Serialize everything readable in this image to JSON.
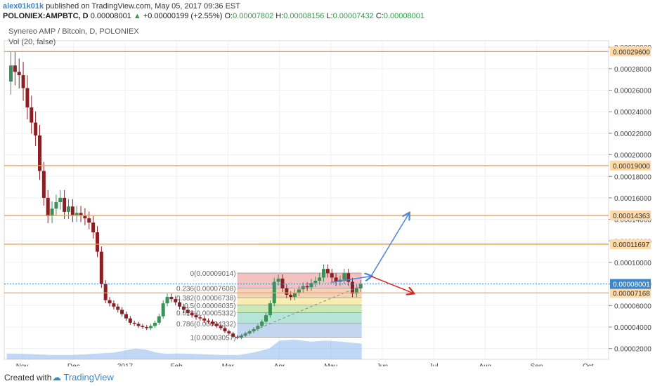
{
  "header": {
    "author": "alex01k01k",
    "meta": "published on TradingView.com, May 05, 2017 09:36 EST",
    "symbol": "POLONIEX:AMPBTC, D",
    "price": "0.00008001",
    "change_arrow": "▲",
    "change": "+0.00000199 (+2.55%)",
    "o_label": "O:",
    "o_val": "0.00007802",
    "h_label": "H:",
    "h_val": "0.00008156",
    "l_label": "L:",
    "l_val": "0.00007432",
    "c_label": "C:",
    "c_val": "0.00008001"
  },
  "legend": {
    "title": "Synereo AMP / Bitcoin, D, POLONIEX",
    "volume": "Vol (20, false)"
  },
  "footer": {
    "created": "Created with",
    "brand": "TradingView"
  },
  "colors": {
    "up": "#3d8f5a",
    "down": "#8a1f24",
    "hline": "#f0a050",
    "volume_area": "#4a90e2",
    "up_arrow": "#4a86d8",
    "down_arrow": "#e02020",
    "label_orange": "#ffd9a6",
    "price_label_bg": "#3b87c9"
  },
  "chart_data": {
    "type": "candlestick",
    "x_ticks": [
      "Nov",
      "Dec",
      "2017",
      "Feb",
      "Mar",
      "Apr",
      "May",
      "Jun",
      "Jul",
      "Aug",
      "Sep",
      "Oct"
    ],
    "y_ticks": [
      "0.00002000",
      "0.00004000",
      "0.00006000",
      "0.00008000",
      "0.00010000",
      "0.00012000",
      "0.00014000",
      "0.00016000",
      "0.00018000",
      "0.00020000",
      "0.00022000",
      "0.00024000",
      "0.00026000",
      "0.00028000",
      "0.00030000"
    ],
    "y_range": [
      1e-05,
      0.000306
    ],
    "x_range": [
      -0.35,
      11.4
    ],
    "horizontal_lines": [
      {
        "value": 0.000296,
        "label": "0.00029600"
      },
      {
        "value": 0.00019,
        "label": "0.00019000"
      },
      {
        "value": 0.00014363,
        "label": "0.00014363"
      },
      {
        "value": 0.00011697,
        "label": "0.00011697"
      },
      {
        "value": 7.168e-05,
        "label": "0.00007168"
      }
    ],
    "current_price": {
      "value": 8.001e-05,
      "label": "0.00008001"
    },
    "fibonacci": [
      {
        "label": "0(0.00009014)",
        "value": 9.014e-05,
        "color": "#f2b6b6"
      },
      {
        "label": "0.236(0.00007608)",
        "value": 7.608e-05,
        "color": "#f6c9a8"
      },
      {
        "label": "0.382(0.00006738)",
        "value": 6.738e-05,
        "color": "#f4eaa0"
      },
      {
        "label": "0.5(0.00006035)",
        "value": 6.035e-05,
        "color": "#bfe6a8"
      },
      {
        "label": "0.618(0.00005332)",
        "value": 5.332e-05,
        "color": "#a8e0d2"
      },
      {
        "label": "0.786(0.00004332)",
        "value": 4.332e-05,
        "color": "#b8cfee"
      },
      {
        "label": "1(0.00003057)",
        "value": 3.057e-05,
        "color": "#c9c2ef"
      }
    ],
    "fib_x": [
      4.18,
      6.6
    ],
    "arrows": [
      {
        "dir": "up",
        "from": [
          6.0,
          8.15e-05
        ],
        "mid": [
          6.78,
          8.72e-05
        ],
        "to": [
          7.52,
          0.00014563
        ]
      },
      {
        "dir": "down",
        "from": [
          6.78,
          8.72e-05
        ],
        "to": [
          7.6,
          7.15e-05
        ]
      }
    ],
    "price_series": [
      [
        -0.3,
        0.000268
      ],
      [
        -0.22,
        0.000283
      ],
      [
        -0.14,
        0.000277
      ],
      [
        -0.06,
        0.000274
      ],
      [
        0.02,
        0.000262
      ],
      [
        0.1,
        0.000244
      ],
      [
        0.18,
        0.00023
      ],
      [
        0.26,
        0.000218
      ],
      [
        0.34,
        0.000185
      ],
      [
        0.42,
        0.00016
      ],
      [
        0.5,
        0.000143
      ],
      [
        0.58,
        0.00015
      ],
      [
        0.66,
        0.000156
      ],
      [
        0.74,
        0.00016
      ],
      [
        0.82,
        0.000147
      ],
      [
        0.9,
        0.000152
      ],
      [
        0.98,
        0.000144
      ],
      [
        1.06,
        0.000146
      ],
      [
        1.14,
        0.000144
      ],
      [
        1.22,
        0.000141
      ],
      [
        1.3,
        0.000137
      ],
      [
        1.38,
        0.000128
      ],
      [
        1.46,
        0.00011
      ],
      [
        1.54,
        8e-05
      ],
      [
        1.62,
        6.5e-05
      ],
      [
        1.7,
        6.2e-05
      ],
      [
        1.78,
        5.9e-05
      ],
      [
        1.86,
        5.6e-05
      ],
      [
        1.94,
        5.2e-05
      ],
      [
        2.02,
        4.8e-05
      ],
      [
        2.1,
        4.4e-05
      ],
      [
        2.18,
        4.3e-05
      ],
      [
        2.26,
        4.1e-05
      ],
      [
        2.34,
        4e-05
      ],
      [
        2.42,
        3.9e-05
      ],
      [
        2.5,
        4.1e-05
      ],
      [
        2.58,
        4.4e-05
      ],
      [
        2.66,
        5e-05
      ],
      [
        2.74,
        6.2e-05
      ],
      [
        2.82,
        6.8e-05
      ],
      [
        2.9,
        6.6e-05
      ],
      [
        2.98,
        6.3e-05
      ],
      [
        3.06,
        5.9e-05
      ],
      [
        3.14,
        5.6e-05
      ],
      [
        3.22,
        5.3e-05
      ],
      [
        3.3,
        5.1e-05
      ],
      [
        3.38,
        4.9e-05
      ],
      [
        3.46,
        4.8e-05
      ],
      [
        3.54,
        4.6e-05
      ],
      [
        3.62,
        4.5e-05
      ],
      [
        3.7,
        4.3e-05
      ],
      [
        3.78,
        4.1e-05
      ],
      [
        3.86,
        3.9e-05
      ],
      [
        3.94,
        3.6e-05
      ],
      [
        4.02,
        3.4e-05
      ],
      [
        4.1,
        3.1e-05
      ],
      [
        4.18,
        3e-05
      ],
      [
        4.26,
        3.2e-05
      ],
      [
        4.34,
        3.4e-05
      ],
      [
        4.42,
        3.6e-05
      ],
      [
        4.5,
        3.8e-05
      ],
      [
        4.58,
        4.1e-05
      ],
      [
        4.66,
        4.5e-05
      ],
      [
        4.74,
        5.1e-05
      ],
      [
        4.82,
        6.2e-05
      ],
      [
        4.9,
        8.2e-05
      ],
      [
        4.98,
        8.5e-05
      ],
      [
        5.06,
        7.6e-05
      ],
      [
        5.14,
        7e-05
      ],
      [
        5.22,
        6.8e-05
      ],
      [
        5.3,
        7.2e-05
      ],
      [
        5.38,
        7.5e-05
      ],
      [
        5.46,
        7.8e-05
      ],
      [
        5.54,
        7.7e-05
      ],
      [
        5.62,
        8.1e-05
      ],
      [
        5.7,
        8.3e-05
      ],
      [
        5.78,
        8.6e-05
      ],
      [
        5.86,
        9.4e-05
      ],
      [
        5.94,
        9e-05
      ],
      [
        6.02,
        8.6e-05
      ],
      [
        6.1,
        8.2e-05
      ],
      [
        6.18,
        8.4e-05
      ],
      [
        6.26,
        9e-05
      ],
      [
        6.34,
        8.2e-05
      ],
      [
        6.42,
        7.1e-05
      ],
      [
        6.5,
        7.6e-05
      ],
      [
        6.58,
        8e-05
      ]
    ],
    "volume_series": [
      [
        -0.3,
        0.3
      ],
      [
        0.0,
        0.28
      ],
      [
        0.3,
        0.25
      ],
      [
        0.6,
        0.22
      ],
      [
        0.9,
        0.22
      ],
      [
        1.2,
        0.25
      ],
      [
        1.5,
        0.3
      ],
      [
        1.8,
        0.35
      ],
      [
        2.0,
        0.45
      ],
      [
        2.2,
        0.55
      ],
      [
        2.4,
        0.5
      ],
      [
        2.6,
        0.35
      ],
      [
        2.8,
        0.28
      ],
      [
        3.0,
        0.3
      ],
      [
        3.3,
        0.28
      ],
      [
        3.6,
        0.25
      ],
      [
        3.9,
        0.22
      ],
      [
        4.2,
        0.22
      ],
      [
        4.5,
        0.35
      ],
      [
        4.8,
        0.55
      ],
      [
        5.0,
        0.95
      ],
      [
        5.3,
        1.0
      ],
      [
        5.6,
        0.9
      ],
      [
        5.9,
        0.95
      ],
      [
        6.2,
        0.9
      ],
      [
        6.4,
        0.85
      ],
      [
        6.6,
        0.8
      ]
    ]
  }
}
